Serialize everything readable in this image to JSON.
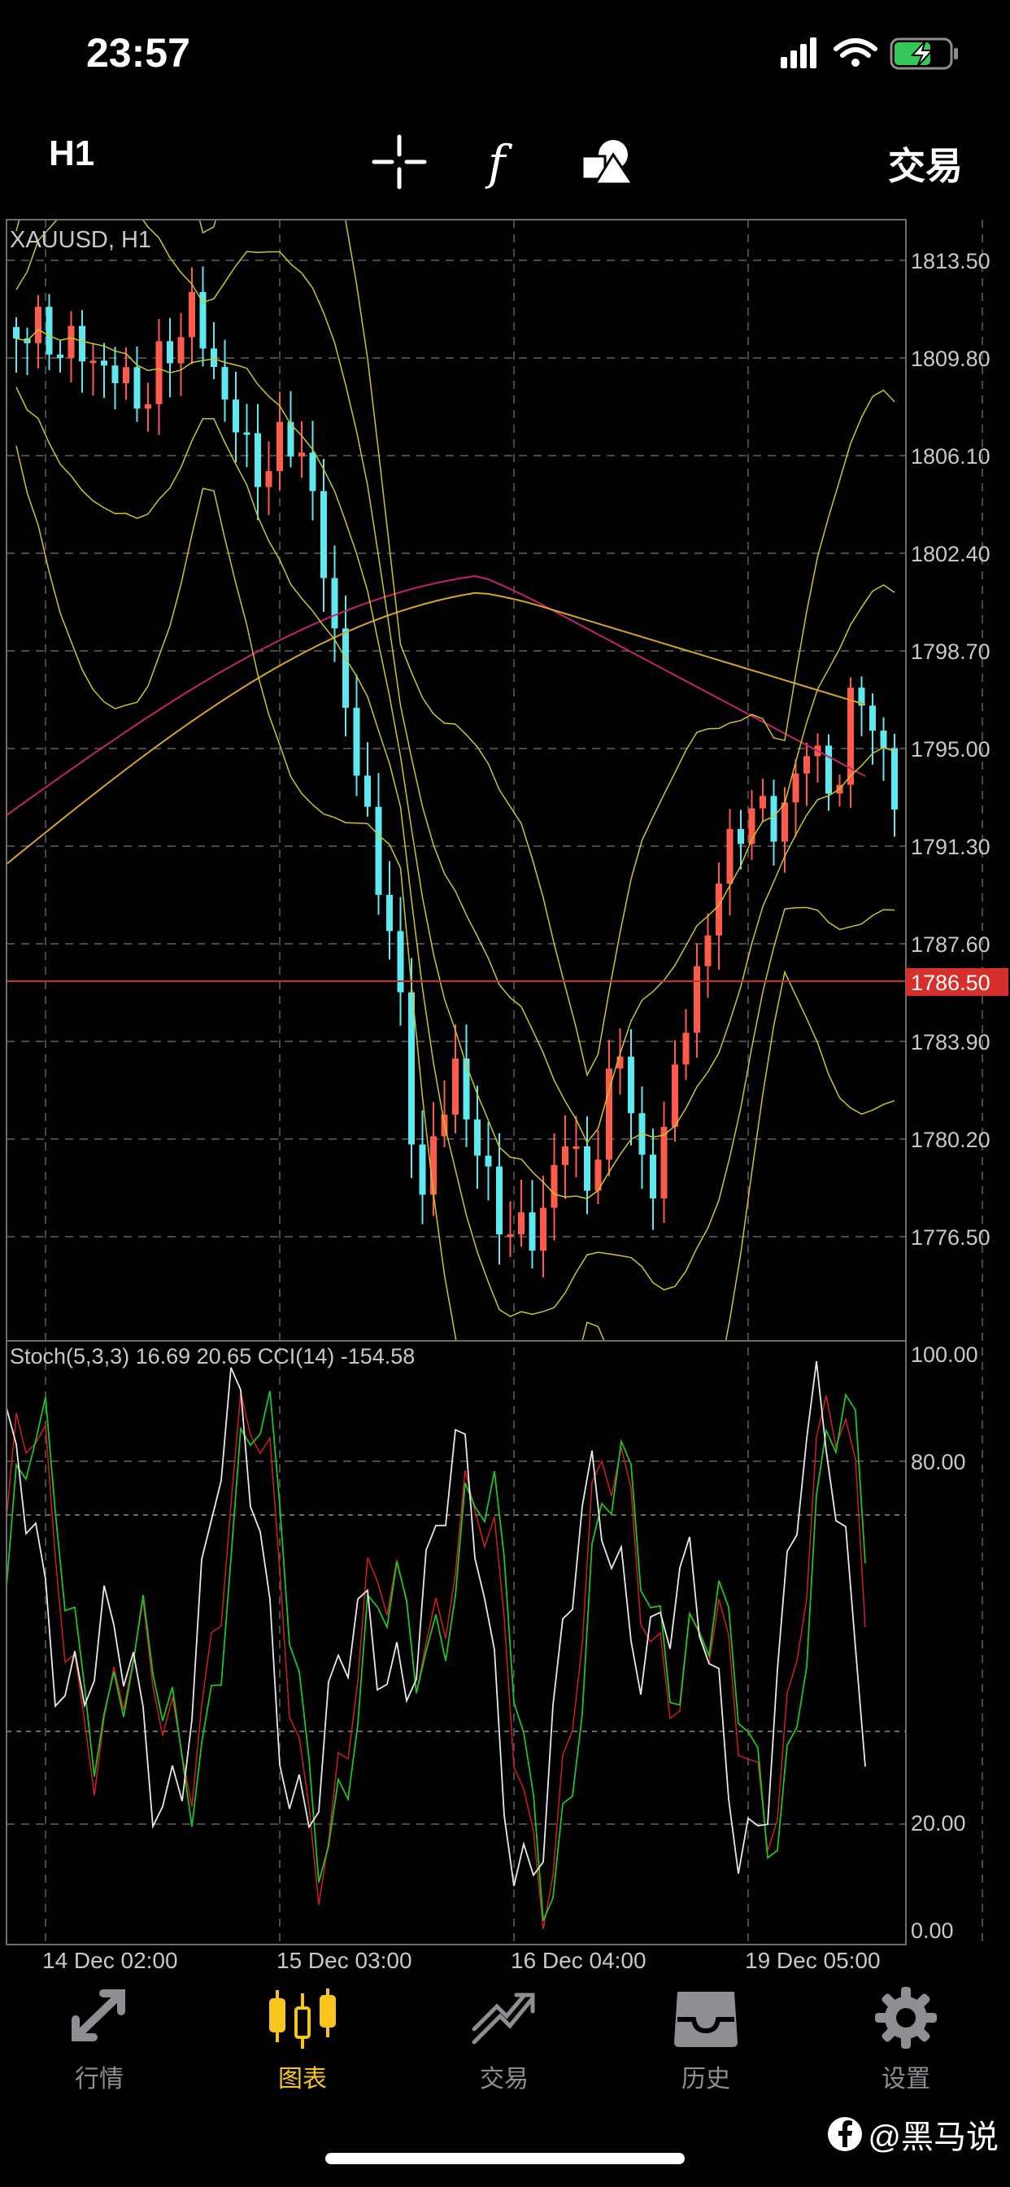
{
  "status": {
    "time": "23:57"
  },
  "toolbar": {
    "timeframe": "H1",
    "trade_label": "交易",
    "icons": [
      "crosshair-icon",
      "function-icon",
      "objects-icon"
    ]
  },
  "chart": {
    "symbol_label": "XAUUSD, H1",
    "price_levels": [
      "1813.50",
      "1809.80",
      "1806.10",
      "1802.40",
      "1798.70",
      "1795.00",
      "1791.30",
      "1787.60",
      "1783.90",
      "1780.20",
      "1776.50"
    ],
    "current_price": "1786.50",
    "indicator_label": "Stoch(5,3,3) 16.69 20.65 CCI(14) -154.58",
    "indicator_levels": [
      "100.00",
      "80.00",
      "20.00",
      "0.00"
    ],
    "time_labels": [
      "14 Dec 02:00",
      "15 Dec 03:00",
      "16 Dec 04:00",
      "19 Dec 05:00"
    ],
    "colors": {
      "bull": "#ff5a4a",
      "bear": "#5ee8f0",
      "current_line": "#c8302c",
      "bands": "#c9c829",
      "ma_fast": "#d6a528",
      "ma_slow": "#c2246f",
      "stoch_main": "#1fc41f",
      "stoch_signal": "#d01f1f",
      "cci": "#e8e8e8"
    }
  },
  "tabs": [
    {
      "label": "行情",
      "icon": "quotes-icon",
      "active": false
    },
    {
      "label": "图表",
      "icon": "candlestick-chart-icon",
      "active": true
    },
    {
      "label": "交易",
      "icon": "trade-icon",
      "active": false
    },
    {
      "label": "历史",
      "icon": "history-icon",
      "active": false
    },
    {
      "label": "设置",
      "icon": "settings-icon",
      "active": false
    }
  ],
  "watermark": "@黑马说"
}
